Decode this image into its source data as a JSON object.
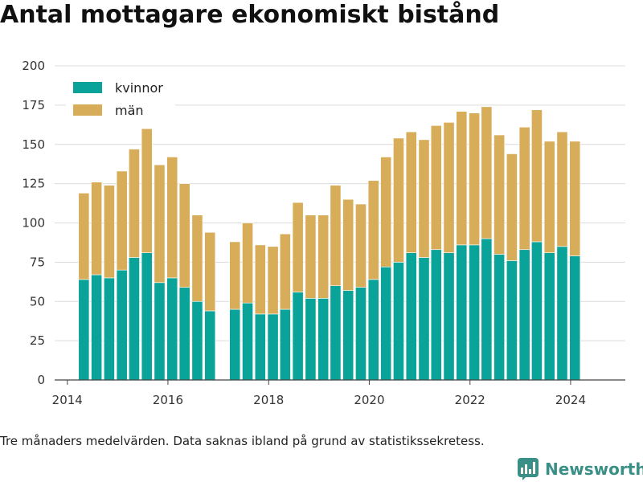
{
  "title": "Antal mottagare ekonomiskt bistånd",
  "footnote": "Tre månaders medelvärden. Data saknas ibland på grund av statistikssekretess.",
  "brand": {
    "name": "Newsworthy",
    "icon": "newsworthy-chart-logo-icon",
    "color": "#3a8f87"
  },
  "chart_data": {
    "type": "bar",
    "stacked": true,
    "title": "",
    "xlabel": "",
    "ylabel": "",
    "ylim": [
      0,
      200
    ],
    "y_ticks": [
      0,
      25,
      50,
      75,
      100,
      125,
      150,
      175,
      200
    ],
    "x_ticks": [
      "2014",
      "2016",
      "2018",
      "2020",
      "2022",
      "2024"
    ],
    "xlim": [
      "2013-10-01",
      "2025-02-01"
    ],
    "grid": true,
    "legend_position": "top-left",
    "x": [
      "2014-05-01",
      "2014-08-01",
      "2014-11-01",
      "2015-02-01",
      "2015-05-01",
      "2015-08-01",
      "2015-11-01",
      "2016-02-01",
      "2016-05-01",
      "2016-08-01",
      "2016-11-01",
      "2017-05-01",
      "2017-08-01",
      "2017-11-01",
      "2018-02-01",
      "2018-05-01",
      "2018-08-01",
      "2018-11-01",
      "2019-02-01",
      "2019-05-01",
      "2019-08-01",
      "2019-11-01",
      "2020-02-01",
      "2020-05-01",
      "2020-08-01",
      "2020-11-01",
      "2021-02-01",
      "2021-05-01",
      "2021-08-01",
      "2021-11-01",
      "2022-02-01",
      "2022-05-01",
      "2022-08-01",
      "2022-11-01",
      "2023-02-01",
      "2023-05-01",
      "2023-08-01",
      "2023-11-01",
      "2024-02-01"
    ],
    "series": [
      {
        "name": "kvinnor",
        "color": "#0aa39a",
        "values": [
          64,
          67,
          65,
          70,
          78,
          81,
          62,
          65,
          59,
          50,
          44,
          45,
          49,
          42,
          42,
          45,
          56,
          52,
          52,
          60,
          57,
          59,
          64,
          72,
          75,
          81,
          78,
          83,
          81,
          86,
          86,
          90,
          80,
          76,
          83,
          88,
          81,
          85,
          79
        ]
      },
      {
        "name": "män",
        "color": "#d8ad5a",
        "values": [
          55,
          59,
          59,
          63,
          69,
          79,
          75,
          77,
          66,
          55,
          50,
          43,
          51,
          44,
          43,
          48,
          57,
          53,
          53,
          64,
          58,
          53,
          63,
          70,
          79,
          77,
          75,
          79,
          83,
          85,
          84,
          84,
          76,
          68,
          78,
          84,
          71,
          73,
          73
        ]
      }
    ]
  }
}
